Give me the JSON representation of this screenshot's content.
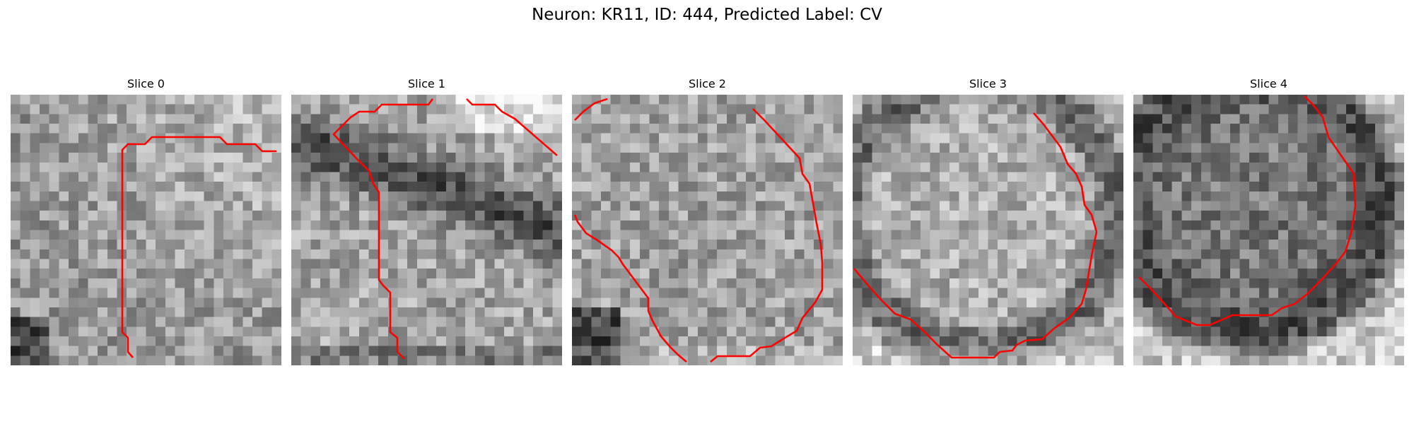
{
  "figure": {
    "title": "Neuron: KR11, ID: 444, Predicted Label: CV"
  },
  "panels": [
    {
      "title": "Slice 0"
    },
    {
      "title": "Slice 1"
    },
    {
      "title": "Slice 2"
    },
    {
      "title": "Slice 3"
    },
    {
      "title": "Slice 4"
    }
  ],
  "colors": {
    "contour": "#ff0000",
    "background": "#ffffff"
  }
}
